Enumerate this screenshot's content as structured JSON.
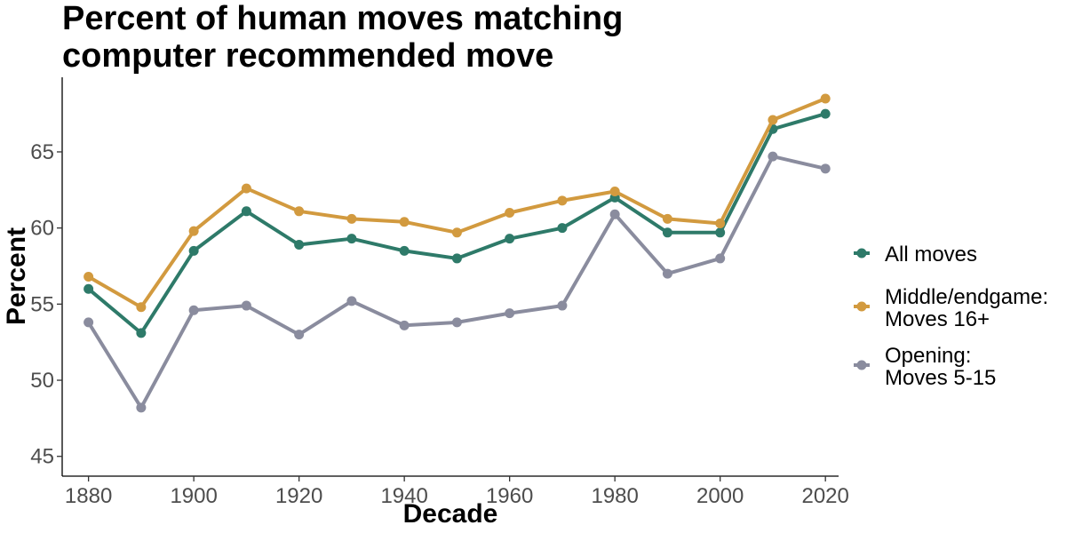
{
  "chart_data": {
    "type": "line",
    "title_lines": [
      "Percent of human moves matching",
      "computer recommended move"
    ],
    "xlabel": "Decade",
    "ylabel": "Percent",
    "x": [
      1880,
      1890,
      1900,
      1910,
      1920,
      1930,
      1940,
      1950,
      1960,
      1970,
      1980,
      1990,
      2000,
      2010,
      2020
    ],
    "xlim": [
      1875,
      2022.5
    ],
    "ylim": [
      43.7,
      69.9
    ],
    "x_ticks": [
      1880,
      1900,
      1920,
      1940,
      1960,
      1980,
      2000,
      2020
    ],
    "y_ticks": [
      45,
      50,
      55,
      60,
      65
    ],
    "grid": false,
    "legend_position": "right",
    "series": [
      {
        "name": "Opening: Moves 5-15",
        "legend_lines": [
          "Opening:",
          "Moves 5-15"
        ],
        "color": "#8a8c9e",
        "values": [
          53.8,
          48.2,
          54.6,
          54.9,
          53.0,
          55.2,
          53.6,
          53.8,
          54.4,
          54.9,
          60.9,
          57.0,
          58.0,
          64.7,
          63.9
        ]
      },
      {
        "name": "All moves",
        "legend_lines": [
          "All moves"
        ],
        "color": "#2e7a69",
        "values": [
          56.0,
          53.1,
          58.5,
          61.1,
          58.9,
          59.3,
          58.5,
          58.0,
          59.3,
          60.0,
          62.0,
          59.7,
          59.7,
          66.5,
          67.5
        ]
      },
      {
        "name": "Middle/endgame: Moves 16+",
        "legend_lines": [
          "Middle/endgame:",
          "Moves 16+"
        ],
        "color": "#d29a3f",
        "values": [
          56.8,
          54.8,
          59.8,
          62.6,
          61.1,
          60.6,
          60.4,
          59.7,
          61.0,
          61.8,
          62.4,
          60.6,
          60.3,
          67.1,
          68.5
        ]
      }
    ],
    "legend_order": [
      1,
      2,
      0
    ]
  }
}
